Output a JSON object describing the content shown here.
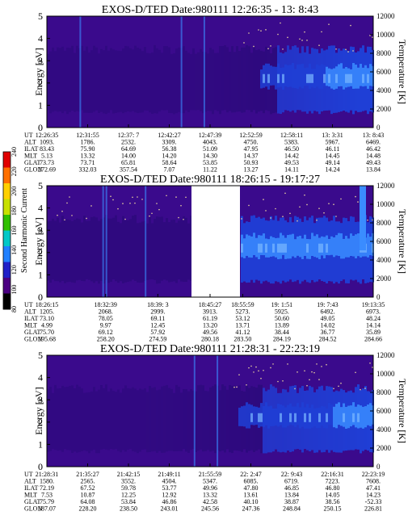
{
  "panels": [
    {
      "title": "EXOS-D/TED   Date:980111  12:26:35 - 13: 8:43",
      "ylabel": "Energy [eV]",
      "y2label": "Temperature [K]",
      "orbit": {
        "rows": [
          "UT",
          "ALT",
          "ILAT",
          "MLT",
          "GLAT",
          "GLON"
        ],
        "columns": [
          [
            "12:26:35",
            "1093.",
            "83.43",
            "5.13",
            "73.73",
            "272.69"
          ],
          [
            "12:31:55",
            "1786.",
            "75.90",
            "13.32",
            "73.71",
            "332.03"
          ],
          [
            "12:37: 7",
            "2532.",
            "64.69",
            "14.00",
            "65.81",
            "357.54"
          ],
          [
            "12:42:27",
            "3309.",
            "56.38",
            "14.20",
            "58.64",
            "7.07"
          ],
          [
            "12:47:39",
            "4043.",
            "51.09",
            "14.30",
            "53.85",
            "11.22"
          ],
          [
            "12:52:59",
            "4750.",
            "47.95",
            "14.37",
            "50.93",
            "13.27"
          ],
          [
            "12:58:11",
            "5383.",
            "46.50",
            "14.42",
            "49.53",
            "14.11"
          ],
          [
            "13: 3:31",
            "5967.",
            "46.11",
            "14.45",
            "49.14",
            "14.24"
          ],
          [
            "13: 8:43",
            "6469.",
            "46.42",
            "14.48",
            "49.43",
            "13.84"
          ]
        ]
      }
    },
    {
      "title": "EXOS-D/TED   Date:980111  18:26:15 - 19:17:27",
      "ylabel": "Energy [eV]",
      "y2label": "Temperature [K]",
      "orbit": {
        "rows": [
          "UT",
          "ALT",
          "ILAT",
          "MLT",
          "GLAT",
          "GLON"
        ],
        "columns": [
          [
            "18:26:15",
            "1205.",
            "73.10",
            "4.99",
            "75.70",
            "195.68"
          ],
          [
            "18:32:39",
            "2068.",
            "78.05",
            "9.97",
            "69.12",
            "258.20"
          ],
          [
            "18:39: 3",
            "2999.",
            "69.11",
            "12.45",
            "57.92",
            "274.59"
          ],
          [
            "18:45:27",
            "3913.",
            "61.19",
            "13.20",
            "49.56",
            "280.18"
          ],
          [
            "18:55:59",
            "5273.",
            "53.12",
            "13.71",
            "41.12",
            "283.50"
          ],
          [
            "19: 1:51",
            "5925.",
            "50.60",
            "13.89",
            "38.44",
            "284.19"
          ],
          [
            "19: 7:43",
            "6492.",
            "49.05",
            "14.02",
            "36.77",
            "284.52"
          ],
          [
            "19:13:35",
            "6973.",
            "48.24",
            "14.14",
            "35.89",
            "284.66"
          ]
        ]
      }
    },
    {
      "title": "EXOS-D/TED   Date:980111  21:28:31 - 22:23:19",
      "ylabel": "Energy [eV]",
      "y2label": "Temperature [K]",
      "orbit": {
        "rows": [
          "UT",
          "ALT",
          "ILAT",
          "MLT",
          "GLAT",
          "GLON"
        ],
        "columns": [
          [
            "21:28:31",
            "1580.",
            "72.19",
            "7.53",
            "75.79",
            "187.07"
          ],
          [
            "21:35:27",
            "2565.",
            "67.52",
            "10.87",
            "64.08",
            "228.20"
          ],
          [
            "21:42:15",
            "3552.",
            "59.78",
            "12.25",
            "53.84",
            "238.50"
          ],
          [
            "21:49:11",
            "4504.",
            "53.77",
            "12.92",
            "46.86",
            "243.01"
          ],
          [
            "21:55:59",
            "5347.",
            "49.96",
            "13.32",
            "42.58",
            "245.56"
          ],
          [
            "22: 2:47",
            "6085.",
            "47.80",
            "13.61",
            "40.10",
            "247.36"
          ],
          [
            "22: 9:43",
            "6719.",
            "46.85",
            "13.84",
            "38.87",
            "248.84"
          ],
          [
            "22:16:31",
            "7223.",
            "46.80",
            "14.05",
            "38.56",
            "250.15"
          ],
          [
            "22:23:19",
            "7608.",
            "47.41",
            "14.23",
            "-52.33",
            "226.81"
          ]
        ]
      }
    }
  ],
  "colorbar": {
    "label": "Second Harmonic Current",
    "ticks": [
      "80",
      "100",
      "120",
      "140",
      "160",
      "180",
      "200",
      "220",
      "240"
    ]
  },
  "chart_data": [
    {
      "type": "heatmap",
      "title": "EXOS-D/TED   Date:980111  12:26:35 - 13: 8:43",
      "ylabel": "Energy [eV]",
      "y2label": "Temperature [K]",
      "ylim": [
        0,
        5
      ],
      "y2lim": [
        0,
        12000
      ],
      "yticks": [
        0,
        1,
        2,
        3,
        4,
        5
      ],
      "y2ticks": [
        0,
        2000,
        4000,
        6000,
        8000,
        10000,
        12000
      ],
      "x_ticks": [
        "12:26:35",
        "12:31:55",
        "12:37: 7",
        "12:42:27",
        "12:47:39",
        "12:52:59",
        "12:58:11",
        "13: 3:31",
        "13: 8:43"
      ]
    },
    {
      "type": "heatmap",
      "title": "EXOS-D/TED   Date:980111  18:26:15 - 19:17:27",
      "ylabel": "Energy [eV]",
      "y2label": "Temperature [K]",
      "ylim": [
        0,
        5
      ],
      "y2lim": [
        0,
        12000
      ],
      "yticks": [
        0,
        1,
        2,
        3,
        4,
        5
      ],
      "y2ticks": [
        0,
        2000,
        4000,
        6000,
        8000,
        10000,
        12000
      ],
      "x_ticks": [
        "18:26:15",
        "18:32:39",
        "18:39: 3",
        "18:45:27",
        "18:55:59",
        "19: 1:51",
        "19: 7:43",
        "19:13:35"
      ]
    },
    {
      "type": "heatmap",
      "title": "EXOS-D/TED   Date:980111  21:28:31 - 22:23:19",
      "ylabel": "Energy [eV]",
      "y2label": "Temperature [K]",
      "ylim": [
        0,
        5
      ],
      "y2lim": [
        0,
        12000
      ],
      "yticks": [
        0,
        1,
        2,
        3,
        4,
        5
      ],
      "y2ticks": [
        0,
        2000,
        4000,
        6000,
        8000,
        10000,
        12000
      ],
      "x_ticks": [
        "21:28:31",
        "21:35:27",
        "21:42:15",
        "21:49:11",
        "21:55:59",
        "22: 2:47",
        "22: 9:43",
        "22:16:31",
        "22:23:19"
      ]
    }
  ],
  "colors": {
    "background": "#3a0a8c",
    "low": "#2a0a7a",
    "mid": "#1f3fd6",
    "high": "#3a8cff",
    "peak": "#7ab8ff",
    "dots": "#e8d0a0"
  }
}
